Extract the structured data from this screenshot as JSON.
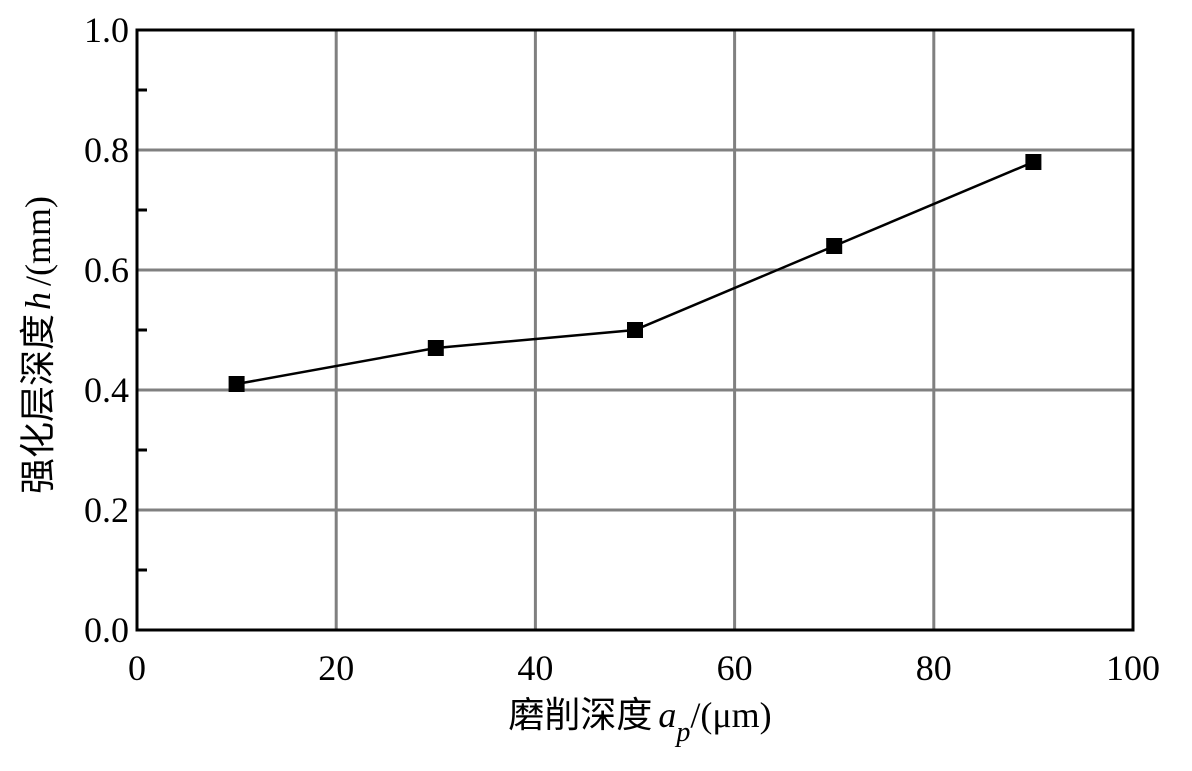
{
  "chart_data": {
    "type": "line",
    "x": [
      10,
      30,
      50,
      70,
      90
    ],
    "series": [
      {
        "color": "#000000",
        "values": [
          0.41,
          0.47,
          0.5,
          0.64,
          0.78
        ]
      }
    ],
    "xlim": [
      0,
      100
    ],
    "xticks": [
      0,
      20,
      40,
      60,
      80,
      100
    ],
    "ylim": [
      0,
      1
    ],
    "yticks": [
      {
        "value": 0,
        "label": "0.0"
      },
      0.2,
      0.4,
      0.6,
      0.8,
      {
        "value": 1,
        "label": "1.0"
      }
    ],
    "yminor_ticks": [
      0.1,
      0.3,
      0.5,
      0.7,
      0.9
    ],
    "grid": true,
    "grid_color": "#808080",
    "xlabel": {
      "text": "磨削深度",
      "symbol": "a",
      "subscript": "p",
      "unit": "/(μm)"
    },
    "ylabel": {
      "text": "强化层深度",
      "symbol": "h",
      "unit": "/(mm)"
    }
  }
}
